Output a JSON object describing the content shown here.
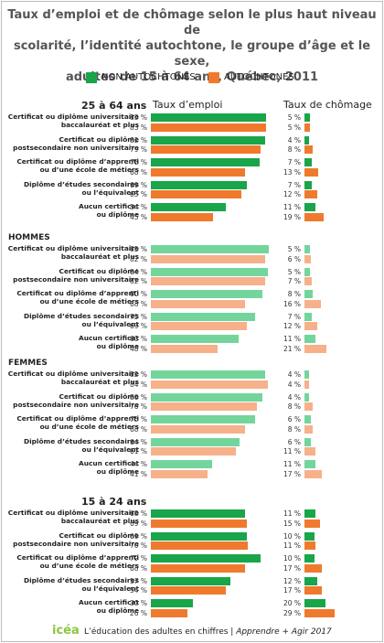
{
  "title_lines": [
    "Taux d’emploi et de chômage selon le plus haut niveau de",
    "scolarité, l’identité autochtone, le groupe d’âge et le sexe,",
    "adultes de 15 à 64 ans, Québec, 2011"
  ],
  "legend": [
    {
      "label": "NON AUTOCHTONES",
      "color": "#19a54a"
    },
    {
      "label": "AUTOCHTONES",
      "color": "#ef7a2e"
    }
  ],
  "column_headers": {
    "employment": "Taux d’emploi",
    "unemployment": "Taux de chômage"
  },
  "colors": {
    "non_autochtones": "#19a54a",
    "autochtones": "#ef7a2e",
    "non_autochtones_light": "#73d59b",
    "autochtones_light": "#f6b18a"
  },
  "footer": {
    "logo": "icéa",
    "text": "L’éducation des adultes en chiffres | ",
    "italic": "Apprendre + Agir 2017"
  },
  "chart_data": {
    "type": "bar",
    "unit": "%",
    "series_names": [
      "NON AUTOCHTONES",
      "AUTOCHTONES"
    ],
    "groups": [
      {
        "title": "25 à 64 ans",
        "categories": [
          [
            "Certificat ou diplôme universitaire",
            "baccalauréat et plus"
          ],
          [
            "Certificat ou diplôme",
            "postsecondaire non universitaire"
          ],
          [
            "Certificat ou diplôme d’apprenti",
            "ou d’une école de métiers"
          ],
          [
            "Diplôme d’études secondaires",
            "ou l’équivalent"
          ],
          [
            "Aucun certificat",
            "ou diplôme"
          ]
        ],
        "employment": {
          "non_autochtones": [
            83,
            82,
            78,
            69,
            54
          ],
          "autochtones": [
            83,
            79,
            68,
            65,
            45
          ]
        },
        "unemployment": {
          "non_autochtones": [
            5,
            4,
            7,
            7,
            11
          ],
          "autochtones": [
            5,
            8,
            13,
            12,
            19
          ]
        }
      },
      {
        "title": "HOMMES",
        "categories": [
          [
            "Certificat ou diplôme universitaire",
            "baccalauréat et plus"
          ],
          [
            "Certificat ou diplôme",
            "postsecondaire non universitaire"
          ],
          [
            "Certificat ou diplôme d’apprenti",
            "ou d’une école de métiers"
          ],
          [
            "Diplôme d’études secondaires",
            "ou l’équivalent"
          ],
          [
            "Aucun certificat",
            "ou diplôme"
          ]
        ],
        "employment": {
          "non_autochtones": [
            85,
            84,
            80,
            75,
            63
          ],
          "autochtones": [
            82,
            82,
            68,
            69,
            48
          ]
        },
        "unemployment": {
          "non_autochtones": [
            5,
            5,
            8,
            7,
            11
          ],
          "autochtones": [
            6,
            7,
            16,
            12,
            21
          ]
        }
      },
      {
        "title": "FEMMES",
        "categories": [
          [
            "Certificat ou diplôme universitaire",
            "baccalauréat et plus"
          ],
          [
            "Certificat ou diplôme",
            "postsecondaire non universitaire"
          ],
          [
            "Certificat ou diplôme d’apprenti",
            "ou d’une école de métiers"
          ],
          [
            "Diplôme d’études secondaires",
            "ou l’équivalent"
          ],
          [
            "Aucun certificat",
            "ou diplôme"
          ]
        ],
        "employment": {
          "non_autochtones": [
            82,
            80,
            75,
            64,
            44
          ],
          "autochtones": [
            84,
            76,
            68,
            61,
            41
          ]
        },
        "unemployment": {
          "non_autochtones": [
            4,
            4,
            6,
            6,
            11
          ],
          "autochtones": [
            4,
            8,
            8,
            11,
            17
          ]
        }
      },
      {
        "title": "15 à 24 ans",
        "categories": [
          [
            "Certificat ou diplôme universitaire",
            "baccalauréat et plus"
          ],
          [
            "Certificat ou diplôme",
            "postsecondaire non universitaire"
          ],
          [
            "Certificat ou diplôme d’apprenti",
            "ou d’une école de métiers"
          ],
          [
            "Diplôme d’études secondaires",
            "ou l’équivalent"
          ],
          [
            "Aucun certificat",
            "ou diplôme"
          ]
        ],
        "employment": {
          "non_autochtones": [
            68,
            69,
            79,
            57,
            30
          ],
          "autochtones": [
            69,
            70,
            68,
            54,
            26
          ]
        },
        "unemployment": {
          "non_autochtones": [
            11,
            10,
            10,
            12,
            20
          ],
          "autochtones": [
            15,
            11,
            17,
            17,
            29
          ]
        }
      }
    ]
  }
}
